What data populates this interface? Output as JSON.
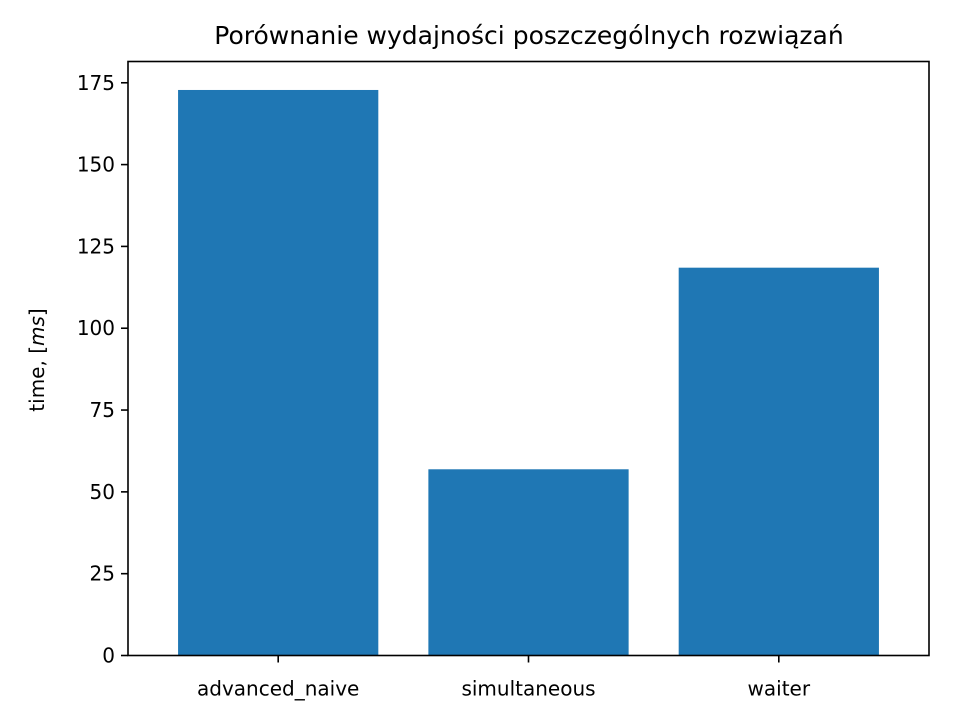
{
  "chart_data": {
    "type": "bar",
    "title": "Porównanie wydajności poszczególnych rozwiązań",
    "xlabel": "",
    "ylabel": "time, [ms]",
    "ylabel_prefix": "time, [",
    "ylabel_unit": "ms",
    "ylabel_suffix": "]",
    "categories": [
      "advanced_naive",
      "simultaneous",
      "waiter"
    ],
    "values": [
      172.8,
      56.9,
      118.5
    ],
    "ylim": [
      0,
      181.5
    ],
    "yticks": [
      0,
      25,
      50,
      75,
      100,
      125,
      150,
      175
    ],
    "bar_color": "#1f77b4",
    "grid": false,
    "legend": "none"
  }
}
